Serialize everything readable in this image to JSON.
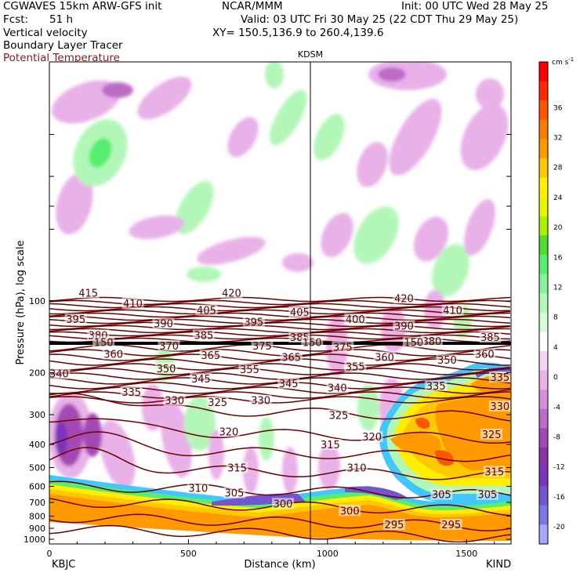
{
  "header": {
    "model": "CGWAVES 15km ARW-GFS init",
    "fcst_label": "Fcst:",
    "fcst_value": "51 h",
    "org": "NCAR/MMM",
    "init": "Init: 00 UTC Wed 28 May 25",
    "valid": "Valid: 03 UTC Fri 30 May 25 (22 CDT Thu 29 May 25)",
    "xy": "XY= 150.5,136.9 to 260.4,139.6",
    "fields": [
      "Vertical velocity",
      "Boundary Layer Tracer",
      "Potential Temperature"
    ]
  },
  "colors": {
    "theta_line": "#6b0000",
    "theta_label": "#5a0000",
    "field3_text": "#8b1a1a"
  },
  "chart_data": {
    "type": "heatmap",
    "title": "",
    "xlabel": "Distance (km)",
    "ylabel": "Pressure (hPa), log scale",
    "x_ticks": [
      0,
      500,
      1000,
      1500
    ],
    "x_range": [
      0,
      1660
    ],
    "y_scale": "log",
    "y_range": [
      1050,
      10
    ],
    "y_ticks": [
      100,
      200,
      300,
      400,
      500,
      600,
      700,
      800,
      900,
      1000
    ],
    "station_left": "KBJC",
    "station_right": "KIND",
    "station_mid": "KDSM",
    "station_mid_x": 945,
    "colorbar": {
      "unit": "cm s",
      "unit_exp": "-1",
      "labels": [
        "36",
        "32",
        "28",
        "24",
        "20",
        "16",
        "12",
        "8",
        "4",
        "0",
        "-4",
        "-8",
        "-12",
        "-16",
        "-20"
      ],
      "colors": [
        "#ff0000",
        "#ff2a00",
        "#ff5500",
        "#ff7a00",
        "#ff9900",
        "#ffc800",
        "#ffee00",
        "#e6f500",
        "#a8f000",
        "#50dd30",
        "#55ee70",
        "#88f29a",
        "#b2f7b8",
        "#d8fbd8",
        "#ffffff",
        "#f2d3f2",
        "#e8b1e8",
        "#d48fd8",
        "#bd6cc6",
        "#a449b4",
        "#8a34a6",
        "#7a36b8",
        "#7355d0",
        "#7a78e6",
        "#a6a6ff"
      ]
    },
    "theta_labels": [
      {
        "t": "415",
        "x": 140,
        "p": 93
      },
      {
        "t": "420",
        "x": 655,
        "p": 93
      },
      {
        "t": "420",
        "x": 1275,
        "p": 98
      },
      {
        "t": "410",
        "x": 300,
        "p": 103
      },
      {
        "t": "405",
        "x": 565,
        "p": 110
      },
      {
        "t": "405",
        "x": 900,
        "p": 112
      },
      {
        "t": "410",
        "x": 1450,
        "p": 110
      },
      {
        "t": "395",
        "x": 95,
        "p": 120
      },
      {
        "t": "390",
        "x": 410,
        "p": 125
      },
      {
        "t": "395",
        "x": 735,
        "p": 123
      },
      {
        "t": "400",
        "x": 1100,
        "p": 120
      },
      {
        "t": "390",
        "x": 1275,
        "p": 128
      },
      {
        "t": "380",
        "x": 175,
        "p": 140
      },
      {
        "t": "385",
        "x": 555,
        "p": 140
      },
      {
        "t": "385",
        "x": 900,
        "p": 143
      },
      {
        "t": "380",
        "x": 1375,
        "p": 148
      },
      {
        "t": "385",
        "x": 1585,
        "p": 143
      },
      {
        "t": "150",
        "x": 195,
        "p": 150
      },
      {
        "t": "150",
        "x": 945,
        "p": 150
      },
      {
        "t": "150",
        "x": 1310,
        "p": 150
      },
      {
        "t": "370",
        "x": 430,
        "p": 155
      },
      {
        "t": "375",
        "x": 765,
        "p": 155
      },
      {
        "t": "375",
        "x": 1055,
        "p": 157
      },
      {
        "t": "360",
        "x": 230,
        "p": 168
      },
      {
        "t": "365",
        "x": 580,
        "p": 170
      },
      {
        "t": "365",
        "x": 870,
        "p": 173
      },
      {
        "t": "360",
        "x": 1205,
        "p": 173
      },
      {
        "t": "350",
        "x": 1430,
        "p": 178
      },
      {
        "t": "360",
        "x": 1565,
        "p": 168
      },
      {
        "t": "340",
        "x": 35,
        "p": 203
      },
      {
        "t": "350",
        "x": 420,
        "p": 193
      },
      {
        "t": "355",
        "x": 720,
        "p": 195
      },
      {
        "t": "355",
        "x": 1100,
        "p": 190
      },
      {
        "t": "345",
        "x": 545,
        "p": 213
      },
      {
        "t": "345",
        "x": 860,
        "p": 223
      },
      {
        "t": "340",
        "x": 1035,
        "p": 233
      },
      {
        "t": "335",
        "x": 1390,
        "p": 228
      },
      {
        "t": "335",
        "x": 1620,
        "p": 210
      },
      {
        "t": "335",
        "x": 295,
        "p": 243
      },
      {
        "t": "330",
        "x": 450,
        "p": 263
      },
      {
        "t": "325",
        "x": 605,
        "p": 268
      },
      {
        "t": "330",
        "x": 760,
        "p": 263
      },
      {
        "t": "325",
        "x": 1040,
        "p": 303
      },
      {
        "t": "330",
        "x": 1620,
        "p": 278
      },
      {
        "t": "320",
        "x": 645,
        "p": 355
      },
      {
        "t": "320",
        "x": 1160,
        "p": 373
      },
      {
        "t": "325",
        "x": 1590,
        "p": 365
      },
      {
        "t": "315",
        "x": 1010,
        "p": 403
      },
      {
        "t": "315",
        "x": 675,
        "p": 503
      },
      {
        "t": "310",
        "x": 1105,
        "p": 503
      },
      {
        "t": "315",
        "x": 1600,
        "p": 523
      },
      {
        "t": "310",
        "x": 535,
        "p": 613
      },
      {
        "t": "305",
        "x": 665,
        "p": 643
      },
      {
        "t": "305",
        "x": 1410,
        "p": 653
      },
      {
        "t": "305",
        "x": 1575,
        "p": 653
      },
      {
        "t": "300",
        "x": 840,
        "p": 713
      },
      {
        "t": "300",
        "x": 1080,
        "p": 763
      },
      {
        "t": "295",
        "x": 1240,
        "p": 873
      },
      {
        "t": "295",
        "x": 1445,
        "p": 873
      }
    ]
  }
}
